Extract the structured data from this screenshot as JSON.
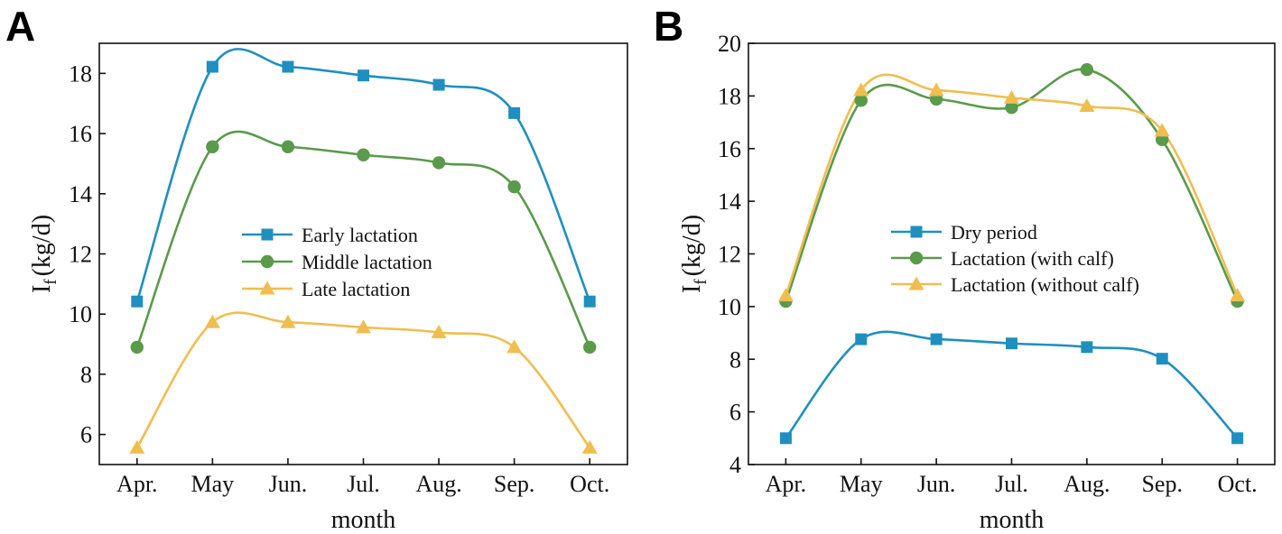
{
  "chart_data": [
    {
      "panel": "A",
      "type": "line",
      "categories": [
        "Apr.",
        "May",
        "Jun.",
        "Jul.",
        "Aug.",
        "Sep.",
        "Oct."
      ],
      "xlabel": "month",
      "ylabel": {
        "main": "I",
        "sub": "f",
        "unit": "(kg/d)"
      },
      "ylim": [
        5,
        19
      ],
      "yticks": [
        6,
        8,
        10,
        12,
        14,
        16,
        18
      ],
      "legend": "center",
      "series": [
        {
          "name": "Early lactation",
          "marker": "square",
          "color": "#1f8fbf",
          "values": [
            10.42,
            18.22,
            18.22,
            17.93,
            17.62,
            16.68,
            10.42
          ]
        },
        {
          "name": "Middle lactation",
          "marker": "circle",
          "color": "#5a9a4b",
          "values": [
            8.9,
            15.56,
            15.56,
            15.29,
            15.03,
            14.23,
            8.9
          ]
        },
        {
          "name": "Late lactation",
          "marker": "triangle",
          "color": "#f0bd4f",
          "values": [
            5.56,
            9.73,
            9.73,
            9.56,
            9.39,
            8.9,
            5.56
          ]
        }
      ]
    },
    {
      "panel": "B",
      "type": "line",
      "categories": [
        "Apr.",
        "May",
        "Jun.",
        "Jul.",
        "Aug.",
        "Sep.",
        "Oct."
      ],
      "xlabel": "month",
      "ylabel": {
        "main": "I",
        "sub": "f",
        "unit": "(kg/d)"
      },
      "ylim": [
        4,
        20
      ],
      "yticks": [
        4,
        6,
        8,
        10,
        12,
        14,
        16,
        18,
        20
      ],
      "legend": "center-right",
      "series": [
        {
          "name": "Dry period",
          "marker": "square",
          "color": "#1f8fbf",
          "values": [
            5.0,
            8.76,
            8.76,
            8.6,
            8.46,
            8.02,
            5.0
          ]
        },
        {
          "name": "Lactation (with calf)",
          "marker": "circle",
          "color": "#5a9a4b",
          "values": [
            10.2,
            17.83,
            17.88,
            17.56,
            19.0,
            16.34,
            10.2
          ]
        },
        {
          "name": "Lactation (without calf)",
          "marker": "triangle",
          "color": "#f0bd4f",
          "values": [
            10.42,
            18.22,
            18.22,
            17.93,
            17.62,
            16.68,
            10.42
          ]
        }
      ]
    }
  ]
}
